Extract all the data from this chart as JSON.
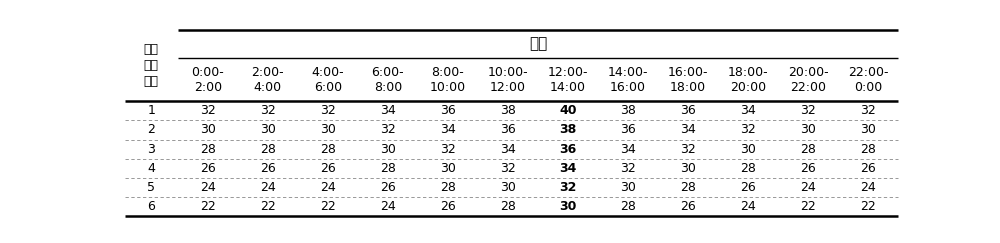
{
  "title": "时段",
  "row_header_label": "温度\n降低\n过程",
  "col_headers": [
    "0:00-\n2:00",
    "2:00-\n4:00",
    "4:00-\n6:00",
    "6:00-\n8:00",
    "8:00-\n10:00",
    "10:00-\n12:00",
    "12:00-\n14:00",
    "14:00-\n16:00",
    "16:00-\n18:00",
    "18:00-\n20:00",
    "20:00-\n22:00",
    "22:00-\n0:00"
  ],
  "row_labels": [
    "1",
    "2",
    "3",
    "4",
    "5",
    "6"
  ],
  "table_data": [
    [
      32,
      32,
      32,
      34,
      36,
      38,
      40,
      38,
      36,
      34,
      32,
      32
    ],
    [
      30,
      30,
      30,
      32,
      34,
      36,
      38,
      36,
      34,
      32,
      30,
      30
    ],
    [
      28,
      28,
      28,
      30,
      32,
      34,
      36,
      34,
      32,
      30,
      28,
      28
    ],
    [
      26,
      26,
      26,
      28,
      30,
      32,
      34,
      32,
      30,
      28,
      26,
      26
    ],
    [
      24,
      24,
      24,
      26,
      28,
      30,
      32,
      30,
      28,
      26,
      24,
      24
    ],
    [
      22,
      22,
      22,
      24,
      26,
      28,
      30,
      28,
      26,
      24,
      22,
      22
    ]
  ],
  "bold_col_index": 6,
  "bg_color": "#ffffff",
  "font_size": 9,
  "title_font_size": 11
}
